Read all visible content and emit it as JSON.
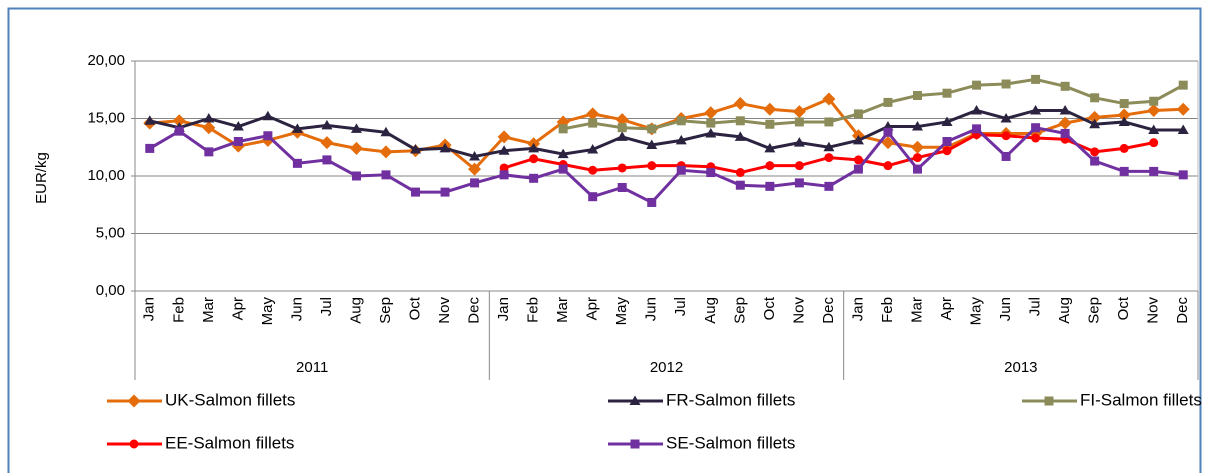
{
  "chart_data": {
    "type": "line",
    "y_label": "EUR/kg",
    "categories": [
      "Jan",
      "Feb",
      "Mar",
      "Apr",
      "May",
      "Jun",
      "Jul",
      "Aug",
      "Sep",
      "Oct",
      "Nov",
      "Dec",
      "Jan",
      "Feb",
      "Mar",
      "Apr",
      "May",
      "Jun",
      "Jul",
      "Aug",
      "Sep",
      "Oct",
      "Nov",
      "Dec",
      "Jan",
      "Feb",
      "Mar",
      "Apr",
      "May",
      "Jun",
      "Jul",
      "Aug",
      "Sep",
      "Oct",
      "Nov",
      "Dec"
    ],
    "years": [
      "2011",
      "2012",
      "2013"
    ],
    "ylim": [
      0,
      20
    ],
    "yticks": [
      {
        "value": 0,
        "label": "0,00"
      },
      {
        "value": 5,
        "label": "5,00"
      },
      {
        "value": 10,
        "label": "10,00"
      },
      {
        "value": 15,
        "label": "15,00"
      },
      {
        "value": 20,
        "label": "20,00"
      }
    ],
    "grid": true,
    "legend": "bottom",
    "series": [
      {
        "name": "UK-Salmon fillets",
        "color": "#e46c0a",
        "marker": "diamond",
        "values": [
          14.6,
          14.8,
          14.2,
          12.6,
          13.1,
          13.8,
          12.9,
          12.4,
          12.1,
          12.2,
          12.7,
          10.6,
          13.4,
          12.8,
          14.7,
          15.4,
          14.9,
          14.1,
          15.0,
          15.5,
          16.3,
          15.8,
          15.6,
          16.7,
          13.5,
          12.9,
          12.5,
          12.5,
          13.7,
          13.7,
          13.7,
          14.6,
          15.1,
          15.3,
          15.7,
          15.8
        ]
      },
      {
        "name": "FR-Salmon fillets",
        "color": "#2b2340",
        "marker": "triangle",
        "values": [
          14.8,
          14.2,
          15.0,
          14.3,
          15.2,
          14.1,
          14.4,
          14.1,
          13.8,
          12.3,
          12.4,
          11.7,
          12.2,
          12.4,
          11.9,
          12.3,
          13.4,
          12.7,
          13.1,
          13.7,
          13.4,
          12.4,
          12.9,
          12.5,
          13.1,
          14.3,
          14.3,
          14.7,
          15.7,
          15.0,
          15.7,
          15.7,
          14.5,
          14.7,
          14.0,
          14.0
        ]
      },
      {
        "name": "FI-Salmon fillets",
        "color": "#8c8c5a",
        "marker": "square",
        "values": [
          null,
          null,
          null,
          null,
          null,
          null,
          null,
          null,
          null,
          null,
          null,
          null,
          null,
          null,
          14.1,
          14.6,
          14.2,
          14.1,
          14.8,
          14.6,
          14.8,
          14.5,
          14.7,
          14.7,
          15.4,
          16.4,
          17.0,
          17.2,
          17.9,
          18.0,
          18.4,
          17.8,
          16.8,
          16.3,
          16.5,
          17.9
        ]
      },
      {
        "name": "EE-Salmon fillets",
        "color": "#ff0000",
        "marker": "circle",
        "values": [
          null,
          null,
          null,
          null,
          null,
          null,
          null,
          null,
          null,
          null,
          null,
          null,
          10.7,
          11.5,
          11.0,
          10.5,
          10.7,
          10.9,
          10.9,
          10.8,
          10.3,
          10.9,
          10.9,
          11.6,
          11.4,
          10.9,
          11.6,
          12.2,
          13.6,
          13.5,
          13.3,
          13.2,
          12.1,
          12.4,
          12.9,
          null
        ]
      },
      {
        "name": "SE-Salmon fillets",
        "color": "#7030a0",
        "marker": "square",
        "values": [
          12.4,
          13.9,
          12.1,
          13.0,
          13.5,
          11.1,
          11.4,
          10.0,
          10.1,
          8.6,
          8.6,
          9.4,
          10.1,
          9.8,
          10.6,
          8.2,
          9.0,
          7.7,
          10.5,
          10.3,
          9.2,
          9.1,
          9.4,
          9.1,
          10.6,
          13.8,
          10.6,
          13.0,
          14.1,
          11.7,
          14.2,
          13.7,
          11.3,
          10.4,
          10.4,
          10.1
        ]
      }
    ]
  }
}
